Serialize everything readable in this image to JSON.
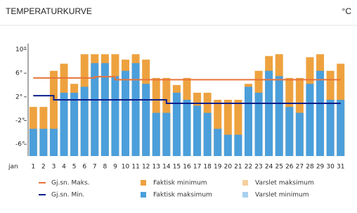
{
  "chart_data": {
    "type": "bar",
    "title": "TEMPERATURKURVE",
    "unit": "°C",
    "x_label": "jan",
    "categories": [
      "1",
      "2",
      "3",
      "4",
      "5",
      "6",
      "7",
      "8",
      "9",
      "10",
      "11",
      "12",
      "13",
      "14",
      "15",
      "16",
      "17",
      "18",
      "19",
      "20",
      "21",
      "22",
      "23",
      "24",
      "25",
      "26",
      "27",
      "28",
      "29",
      "30",
      "31"
    ],
    "ylim": [
      -8,
      11
    ],
    "yticks": [
      {
        "value": -6,
        "label": "-6°"
      },
      {
        "value": -2,
        "label": "-2°"
      },
      {
        "value": 2,
        "label": "2°"
      },
      {
        "value": 6,
        "label": "6°"
      },
      {
        "value": 10,
        "label": "10°"
      }
    ],
    "series": [
      {
        "name": "Gj.sn. Maks.",
        "mark": "line",
        "color": "#e8743b",
        "values": [
          5.2,
          5.2,
          5.2,
          5.2,
          5.2,
          5.2,
          5.4,
          5.4,
          4.9,
          4.9,
          4.9,
          4.9,
          4.9,
          4.9,
          4.9,
          4.9,
          4.9,
          4.9,
          4.9,
          4.9,
          4.9,
          4.9,
          4.9,
          4.9,
          4.9,
          4.9,
          4.9,
          4.9,
          4.9,
          4.9,
          4.9
        ]
      },
      {
        "name": "Faktisk minimum",
        "mark": "bar",
        "color": "#eea23f",
        "values": [
          0.3,
          0.3,
          6.4,
          7.6,
          4.2,
          9.2,
          9.2,
          9.2,
          9.2,
          8.3,
          9.2,
          8.3,
          5.2,
          5.2,
          4.0,
          5.2,
          2.7,
          2.7,
          1.5,
          1.5,
          1.5,
          4.2,
          6.4,
          8.9,
          9.2,
          5.2,
          5.2,
          8.7,
          9.2,
          6.4,
          7.6
        ]
      },
      {
        "name": "Varslet maksimum",
        "mark": "bar",
        "color": "#f6cf9f",
        "values": [
          null,
          null,
          null,
          null,
          null,
          null,
          null,
          null,
          null,
          null,
          null,
          null,
          null,
          null,
          null,
          null,
          null,
          null,
          null,
          null,
          null,
          null,
          null,
          null,
          null,
          null,
          null,
          null,
          null,
          null,
          null
        ]
      },
      {
        "name": "Gj.sn. Min.",
        "mark": "line",
        "color": "#0c1f8c",
        "values": [
          2.2,
          2.2,
          1.5,
          1.5,
          1.5,
          1.5,
          1.5,
          1.5,
          1.5,
          1.5,
          1.5,
          1.5,
          1.5,
          0.9,
          0.9,
          0.9,
          0.9,
          0.9,
          0.9,
          0.9,
          0.9,
          0.9,
          0.9,
          0.9,
          0.9,
          0.9,
          0.9,
          0.9,
          0.9,
          0.9,
          0.9
        ]
      },
      {
        "name": "Faktisk maksimum",
        "mark": "bar",
        "color": "#4b9fdb",
        "values": [
          -3.4,
          -3.4,
          -3.4,
          2.7,
          2.7,
          3.7,
          7.7,
          7.7,
          5.5,
          6.4,
          7.7,
          4.2,
          -0.7,
          -0.7,
          2.7,
          1.5,
          0.5,
          -0.7,
          -3.4,
          -4.4,
          -4.4,
          3.7,
          2.7,
          6.4,
          5.5,
          0.3,
          -0.7,
          4.2,
          6.4,
          1.5,
          1.5
        ]
      },
      {
        "name": "Varslet minimum",
        "mark": "bar",
        "color": "#a9d0ef",
        "values": [
          null,
          null,
          null,
          null,
          null,
          null,
          null,
          null,
          null,
          null,
          null,
          null,
          null,
          null,
          null,
          null,
          null,
          null,
          null,
          null,
          null,
          null,
          null,
          null,
          null,
          null,
          null,
          null,
          null,
          null,
          null
        ]
      }
    ]
  }
}
